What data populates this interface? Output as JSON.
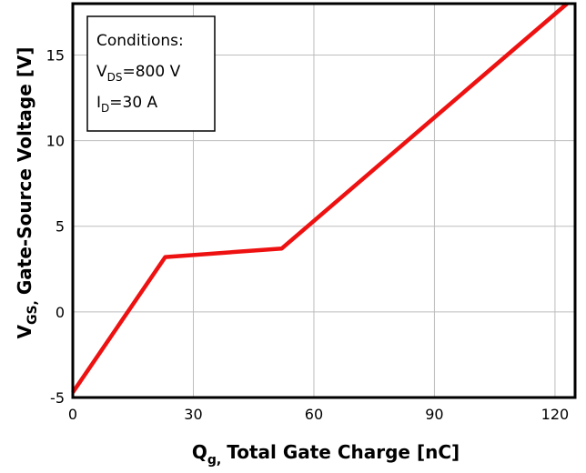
{
  "chart_data": {
    "type": "line",
    "title": "",
    "xlabel": {
      "main": "Q",
      "sub": "g,",
      "rest": "Total Gate Charge [nC]"
    },
    "ylabel": {
      "main": "V",
      "sub": "GS,",
      "rest": "Gate-Source Voltage [V]"
    },
    "xlim": [
      0,
      125
    ],
    "ylim": [
      -5,
      18
    ],
    "x_ticks": [
      0,
      30,
      60,
      90,
      120
    ],
    "y_ticks": [
      -5,
      0,
      5,
      10,
      15
    ],
    "grid": true,
    "series": [
      {
        "color": "#ee1111",
        "points": [
          [
            0,
            -4.7
          ],
          [
            23,
            3.2
          ],
          [
            52,
            3.7
          ],
          [
            123,
            18
          ]
        ]
      }
    ],
    "annotation": {
      "line1": "Conditions:",
      "line2": {
        "main": "V",
        "sub": "DS",
        "rest": "=800 V"
      },
      "line3": {
        "main": "I",
        "sub": "D",
        "rest": "=30 A"
      }
    }
  }
}
